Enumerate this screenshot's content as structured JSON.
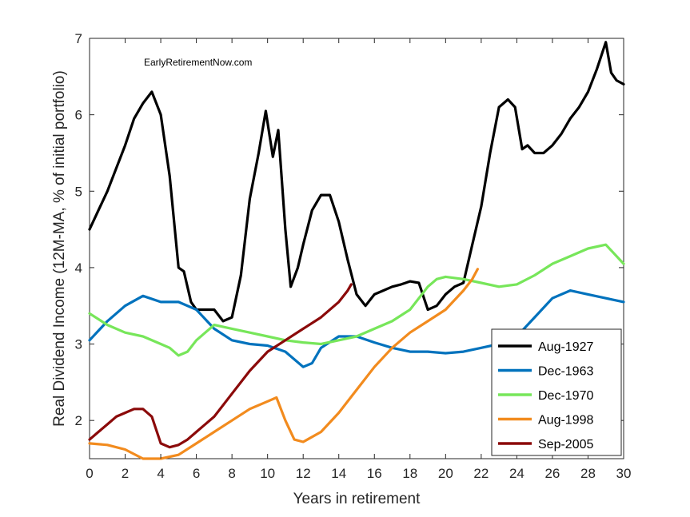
{
  "chart_data": {
    "type": "line",
    "title": "",
    "annotation": "EarlyRetirementNow.com",
    "xlabel": "Years in retirement",
    "ylabel": "Real Dividend Income (12M-MA, % of initial portfolio)",
    "xlim": [
      0,
      30
    ],
    "ylim": [
      1.5,
      7
    ],
    "xticks": [
      0,
      2,
      4,
      6,
      8,
      10,
      12,
      14,
      16,
      18,
      20,
      22,
      24,
      26,
      28,
      30
    ],
    "yticks": [
      2,
      3,
      4,
      5,
      6,
      7
    ],
    "grid": false,
    "legend_position": "bottom-right",
    "series": [
      {
        "name": "Aug-1927",
        "color": "#000000",
        "x": [
          0,
          0.5,
          1,
          1.5,
          2,
          2.5,
          3,
          3.5,
          4,
          4.5,
          5,
          5.3,
          5.7,
          6,
          6.5,
          7,
          7.5,
          8,
          8.5,
          9,
          9.5,
          9.9,
          10.3,
          10.6,
          11,
          11.3,
          11.7,
          12,
          12.5,
          13,
          13.5,
          14,
          14.5,
          15,
          15.5,
          16,
          16.5,
          17,
          17.5,
          18,
          18.5,
          19,
          19.5,
          20,
          20.5,
          21,
          21.5,
          22,
          22.5,
          23,
          23.5,
          23.9,
          24.3,
          24.6,
          25,
          25.5,
          26,
          26.5,
          27,
          27.5,
          28,
          28.5,
          29,
          29.3,
          29.6,
          30
        ],
        "values": [
          4.5,
          4.75,
          5.0,
          5.3,
          5.6,
          5.95,
          6.15,
          6.3,
          6.0,
          5.2,
          4.0,
          3.95,
          3.55,
          3.45,
          3.45,
          3.45,
          3.3,
          3.35,
          3.9,
          4.9,
          5.5,
          6.05,
          5.45,
          5.8,
          4.5,
          3.75,
          4.0,
          4.3,
          4.75,
          4.95,
          4.95,
          4.6,
          4.1,
          3.65,
          3.5,
          3.65,
          3.7,
          3.75,
          3.78,
          3.82,
          3.8,
          3.45,
          3.5,
          3.65,
          3.75,
          3.8,
          4.3,
          4.8,
          5.5,
          6.1,
          6.2,
          6.1,
          5.55,
          5.6,
          5.5,
          5.5,
          5.6,
          5.75,
          5.95,
          6.1,
          6.3,
          6.6,
          6.95,
          6.55,
          6.45,
          6.4
        ]
      },
      {
        "name": "Dec-1963",
        "color": "#0072BD",
        "x": [
          0,
          1,
          2,
          3,
          4,
          5,
          6,
          7,
          8,
          9,
          10,
          11,
          12,
          12.5,
          13,
          14,
          15,
          16,
          17,
          18,
          19,
          20,
          21,
          22,
          23,
          24,
          25,
          26,
          27,
          28,
          29,
          30
        ],
        "values": [
          3.05,
          3.3,
          3.5,
          3.63,
          3.55,
          3.55,
          3.45,
          3.2,
          3.05,
          3.0,
          2.98,
          2.9,
          2.7,
          2.75,
          2.95,
          3.1,
          3.1,
          3.02,
          2.95,
          2.9,
          2.9,
          2.88,
          2.9,
          2.95,
          3.0,
          3.1,
          3.35,
          3.6,
          3.7,
          3.65,
          3.6,
          3.55
        ]
      },
      {
        "name": "Dec-1970",
        "color": "#77E65A",
        "x": [
          0,
          1,
          2,
          3,
          4,
          4.5,
          5,
          5.5,
          6,
          7,
          8,
          9,
          10,
          11,
          12,
          13,
          14,
          15,
          16,
          17,
          18,
          19,
          19.5,
          20,
          21,
          22,
          23,
          24,
          25,
          26,
          27,
          28,
          29,
          30
        ],
        "values": [
          3.4,
          3.25,
          3.15,
          3.1,
          3.0,
          2.95,
          2.85,
          2.9,
          3.05,
          3.25,
          3.2,
          3.15,
          3.1,
          3.05,
          3.02,
          3.0,
          3.05,
          3.1,
          3.2,
          3.3,
          3.45,
          3.75,
          3.85,
          3.88,
          3.85,
          3.8,
          3.75,
          3.78,
          3.9,
          4.05,
          4.15,
          4.25,
          4.3,
          4.05
        ]
      },
      {
        "name": "Aug-1998",
        "color": "#F28B1E",
        "x": [
          0,
          1,
          2,
          3,
          4,
          5,
          6,
          7,
          8,
          9,
          10,
          10.5,
          11,
          11.5,
          12,
          13,
          14,
          15,
          16,
          17,
          18,
          19,
          20,
          21,
          21.5,
          21.8
        ],
        "values": [
          1.7,
          1.68,
          1.62,
          1.5,
          1.5,
          1.55,
          1.7,
          1.85,
          2.0,
          2.15,
          2.25,
          2.3,
          2.0,
          1.75,
          1.72,
          1.85,
          2.1,
          2.4,
          2.7,
          2.95,
          3.15,
          3.3,
          3.45,
          3.7,
          3.85,
          3.98
        ]
      },
      {
        "name": "Sep-2005",
        "color": "#8B0A0A",
        "x": [
          0,
          0.5,
          1,
          1.5,
          2,
          2.5,
          3,
          3.5,
          4,
          4.5,
          5,
          5.5,
          6,
          7,
          8,
          9,
          10,
          11,
          12,
          13,
          14,
          14.5,
          14.7
        ],
        "values": [
          1.75,
          1.85,
          1.95,
          2.05,
          2.1,
          2.15,
          2.15,
          2.05,
          1.7,
          1.65,
          1.68,
          1.75,
          1.85,
          2.05,
          2.35,
          2.65,
          2.9,
          3.05,
          3.2,
          3.35,
          3.55,
          3.7,
          3.78
        ]
      }
    ]
  }
}
